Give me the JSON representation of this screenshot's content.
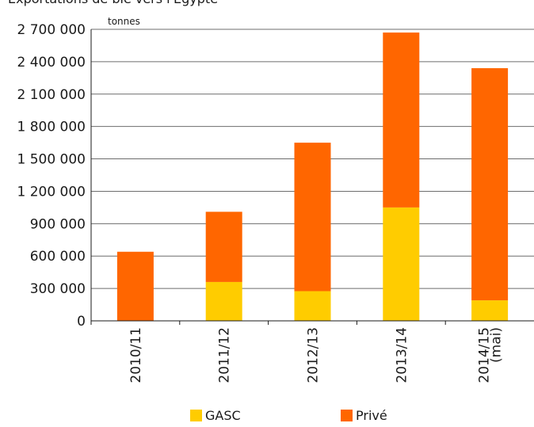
{
  "header": {
    "partial_title": "Exportations de ble vers l'Egypte",
    "unit_label": "tonnes"
  },
  "chart_data": {
    "type": "bar",
    "stacked": true,
    "categories": [
      "2010/11",
      "2011/12",
      "2012/13",
      "2013/14",
      "2014/15\n(mai)"
    ],
    "category_lines": [
      [
        "2010/11"
      ],
      [
        "2011/12"
      ],
      [
        "2012/13"
      ],
      [
        "2013/14"
      ],
      [
        "2014/15",
        "(mai)"
      ]
    ],
    "series": [
      {
        "name": "GASC",
        "color": "#FFCC00",
        "values": [
          0,
          360000,
          275000,
          1050000,
          190000
        ]
      },
      {
        "name": "Privé",
        "color": "#FF6600",
        "values": [
          640000,
          650000,
          1375000,
          1620000,
          2150000
        ]
      }
    ],
    "ylim": [
      0,
      2700000
    ],
    "yticks": [
      0,
      300000,
      600000,
      900000,
      1200000,
      1500000,
      1800000,
      2100000,
      2400000,
      2700000
    ],
    "ytick_labels": [
      "0",
      "300 000",
      "600 000",
      "900 000",
      "1 200 000",
      "1 500 000",
      "1 800 000",
      "2 100 000",
      "2 400 000",
      "2 700 000"
    ],
    "grid": true,
    "legend_position": "bottom"
  }
}
